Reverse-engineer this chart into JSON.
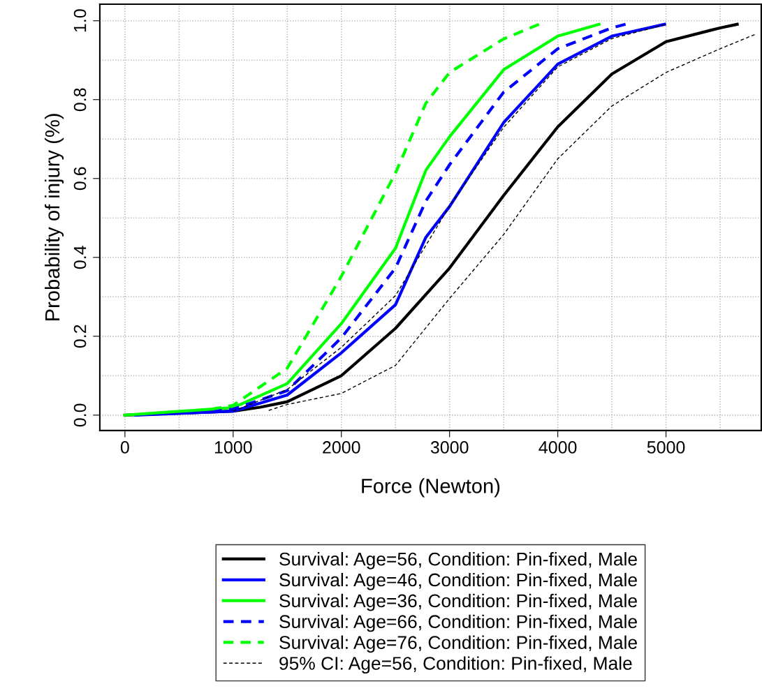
{
  "chart_data": {
    "type": "line",
    "xlabel": "Force (Newton)",
    "ylabel": "Probability of injury (%)",
    "xlim": [
      -232,
      5880
    ],
    "ylim": [
      -0.039,
      1.042
    ],
    "xticks": [
      0,
      {
        "value": 500,
        "label": null
      },
      1000,
      {
        "value": 1500,
        "label": null
      },
      2000,
      {
        "value": 2500,
        "label": null
      },
      3000,
      {
        "value": 3500,
        "label": null
      },
      4000,
      {
        "value": 4500,
        "label": null
      },
      5000,
      {
        "value": 5500,
        "label": null
      }
    ],
    "yticks": [
      {
        "value": 0,
        "label": "0.0"
      },
      {
        "value": 0.1,
        "label": null
      },
      0.2,
      {
        "value": 0.3,
        "label": null
      },
      0.4,
      {
        "value": 0.5,
        "label": null
      },
      0.6,
      {
        "value": 0.7,
        "label": null
      },
      0.8,
      {
        "value": 0.9,
        "label": null
      },
      {
        "value": 1,
        "label": "1.0"
      }
    ],
    "grid": true,
    "legend": "bottom",
    "series": [
      {
        "name": "Survival: Age=56, Condition: Pin-fixed, Male",
        "color": "#000000",
        "line_style": "solid",
        "x": [
          0,
          1000,
          1250,
          1500,
          2000,
          2500,
          3000,
          3500,
          4000,
          4500,
          5000,
          5500,
          5658
        ],
        "values": [
          0,
          0.01,
          0.02,
          0.034,
          0.1,
          0.22,
          0.373,
          0.557,
          0.731,
          0.865,
          0.947,
          0.982,
          0.991
        ]
      },
      {
        "name": "Survival: Age=46, Condition: Pin-fixed, Male",
        "color": "#0000ff",
        "line_style": "solid",
        "x": [
          100,
          1000,
          1500,
          2000,
          2500,
          2781,
          3000,
          3500,
          4000,
          4500,
          4987
        ],
        "values": [
          0,
          0.01,
          0.051,
          0.158,
          0.28,
          0.451,
          0.529,
          0.742,
          0.89,
          0.961,
          0.991
        ]
      },
      {
        "name": "Survival: Age=36, Condition: Pin-fixed, Male",
        "color": "#00ff00",
        "line_style": "solid",
        "x": [
          0,
          1000,
          1500,
          2000,
          2500,
          2781,
          3000,
          3500,
          4000,
          4381
        ],
        "values": [
          0,
          0.019,
          0.08,
          0.232,
          0.423,
          0.621,
          0.706,
          0.876,
          0.961,
          0.991
        ]
      },
      {
        "name": "Survival: Age=66, Condition: Pin-fixed, Male",
        "color": "#0000ff",
        "line_style": "dashed",
        "x": [
          800,
          1000,
          1500,
          2000,
          2500,
          2781,
          3000,
          3500,
          4000,
          4500,
          4626
        ],
        "values": [
          0.01,
          0.015,
          0.062,
          0.196,
          0.373,
          0.543,
          0.635,
          0.819,
          0.929,
          0.982,
          0.991
        ]
      },
      {
        "name": "Survival: Age=76, Condition: Pin-fixed, Male",
        "color": "#00ff00",
        "line_style": "dashed",
        "x": [
          800,
          1000,
          1500,
          2000,
          2500,
          2781,
          3000,
          3500,
          3826
        ],
        "values": [
          0.015,
          0.025,
          0.119,
          0.352,
          0.614,
          0.791,
          0.869,
          0.954,
          0.991
        ]
      },
      {
        "name": "95% CI: Age=56, Condition: Pin-fixed, Male",
        "color": "#000000",
        "line_style": "dashed",
        "x": [
          1329,
          1500,
          2000,
          2500,
          3000,
          3500,
          4000,
          4500,
          5000,
          5500,
          5819
        ],
        "values": [
          0.012,
          0.027,
          0.055,
          0.126,
          0.296,
          0.458,
          0.65,
          0.784,
          0.869,
          0.929,
          0.965
        ]
      },
      {
        "color": "#000000",
        "line_style": "dashed",
        "x": [
          1000,
          1500,
          2000,
          2500,
          3000,
          3500,
          4000,
          4500,
          4987
        ],
        "values": [
          0.01,
          0.065,
          0.172,
          0.303,
          0.53,
          0.73,
          0.883,
          0.955,
          0.99
        ]
      }
    ]
  }
}
